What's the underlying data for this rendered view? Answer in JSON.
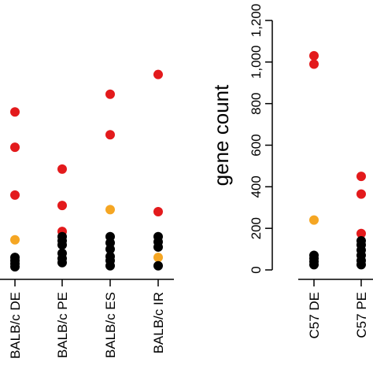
{
  "chart_data": [
    {
      "type": "scatter",
      "title": "",
      "xlabel": "",
      "ylabel": "",
      "categories": [
        "BALB/c DE",
        "BALB/c PE",
        "BALB/c ES",
        "BALB/c IR"
      ],
      "ylim": [
        0,
        1200
      ],
      "y_axis_shown": false,
      "grid": false,
      "series": [
        {
          "color": "#e31a1c",
          "points": [
            {
              "x": "BALB/c DE",
              "y": 760
            },
            {
              "x": "BALB/c DE",
              "y": 590
            },
            {
              "x": "BALB/c DE",
              "y": 360
            },
            {
              "x": "BALB/c PE",
              "y": 485
            },
            {
              "x": "BALB/c PE",
              "y": 310
            },
            {
              "x": "BALB/c PE",
              "y": 185
            },
            {
              "x": "BALB/c ES",
              "y": 845
            },
            {
              "x": "BALB/c ES",
              "y": 650
            },
            {
              "x": "BALB/c IR",
              "y": 940
            },
            {
              "x": "BALB/c IR",
              "y": 280
            }
          ]
        },
        {
          "color": "#f5a623",
          "points": [
            {
              "x": "BALB/c DE",
              "y": 145
            },
            {
              "x": "BALB/c ES",
              "y": 290
            },
            {
              "x": "BALB/c IR",
              "y": 60
            }
          ]
        },
        {
          "color": "#000000",
          "points": [
            {
              "x": "BALB/c DE",
              "y": 60
            },
            {
              "x": "BALB/c DE",
              "y": 45
            },
            {
              "x": "BALB/c DE",
              "y": 30
            },
            {
              "x": "BALB/c DE",
              "y": 15
            },
            {
              "x": "BALB/c PE",
              "y": 160
            },
            {
              "x": "BALB/c PE",
              "y": 140
            },
            {
              "x": "BALB/c PE",
              "y": 120
            },
            {
              "x": "BALB/c PE",
              "y": 80
            },
            {
              "x": "BALB/c PE",
              "y": 55
            },
            {
              "x": "BALB/c PE",
              "y": 35
            },
            {
              "x": "BALB/c ES",
              "y": 160
            },
            {
              "x": "BALB/c ES",
              "y": 130
            },
            {
              "x": "BALB/c ES",
              "y": 100
            },
            {
              "x": "BALB/c ES",
              "y": 65
            },
            {
              "x": "BALB/c ES",
              "y": 45
            },
            {
              "x": "BALB/c ES",
              "y": 20
            },
            {
              "x": "BALB/c IR",
              "y": 160
            },
            {
              "x": "BALB/c IR",
              "y": 135
            },
            {
              "x": "BALB/c IR",
              "y": 110
            },
            {
              "x": "BALB/c IR",
              "y": 20
            }
          ]
        }
      ]
    },
    {
      "type": "scatter",
      "title": "",
      "xlabel": "",
      "ylabel": "gene count",
      "categories": [
        "C57 DE",
        "C57 PE"
      ],
      "ylim": [
        0,
        1200
      ],
      "yticks": [
        0,
        200,
        400,
        600,
        800,
        1000,
        1200
      ],
      "ytick_labels": [
        "0",
        "200",
        "400",
        "600",
        "800",
        "1,000",
        "1,200"
      ],
      "grid": false,
      "series": [
        {
          "color": "#e31a1c",
          "points": [
            {
              "x": "C57 DE",
              "y": 1030
            },
            {
              "x": "C57 DE",
              "y": 990
            },
            {
              "x": "C57 PE",
              "y": 450
            },
            {
              "x": "C57 PE",
              "y": 365
            },
            {
              "x": "C57 PE",
              "y": 175
            }
          ]
        },
        {
          "color": "#f5a623",
          "points": [
            {
              "x": "C57 DE",
              "y": 240
            }
          ]
        },
        {
          "color": "#000000",
          "points": [
            {
              "x": "C57 DE",
              "y": 70
            },
            {
              "x": "C57 DE",
              "y": 55
            },
            {
              "x": "C57 DE",
              "y": 40
            },
            {
              "x": "C57 DE",
              "y": 25
            },
            {
              "x": "C57 PE",
              "y": 140
            },
            {
              "x": "C57 PE",
              "y": 120
            },
            {
              "x": "C57 PE",
              "y": 95
            },
            {
              "x": "C57 PE",
              "y": 70
            },
            {
              "x": "C57 PE",
              "y": 45
            },
            {
              "x": "C57 PE",
              "y": 25
            }
          ]
        }
      ]
    }
  ]
}
